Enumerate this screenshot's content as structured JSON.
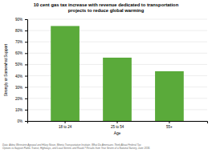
{
  "chart_data": {
    "type": "bar",
    "title": "10 cent gas tax increase with revenue dedicated to transportation\nprojects to reduce global warming",
    "categories": [
      "18 to 24",
      "25 to 54",
      "55+"
    ],
    "values": [
      0.84,
      0.56,
      0.44
    ],
    "color": "#5aaa3a",
    "xlabel": "Age",
    "ylabel": "Strongly or Somewhat Support",
    "ylim": [
      0,
      0.9
    ],
    "yticks": [
      {
        "value": 0.0,
        "label": "0%"
      },
      {
        "value": 0.1,
        "label": "10%"
      },
      {
        "value": 0.2,
        "label": "20%"
      },
      {
        "value": 0.3,
        "label": "30%"
      },
      {
        "value": 0.4,
        "label": "40%"
      },
      {
        "value": 0.5,
        "label": "50%"
      },
      {
        "value": 0.6,
        "label": "60%"
      },
      {
        "value": 0.7,
        "label": "70%"
      },
      {
        "value": 0.8,
        "label": "80%"
      },
      {
        "value": 0.9,
        "label": "90%"
      }
    ],
    "grid": true,
    "footnote": "Data: Adina Weinstein Agrawal and Hilary Nixon, Mineta Transportation Institute, What Do Americans Think About Federal Tax\nOptions to Support Public Transit, Highways, and Local Streets and Roads? Results from Year Seven of a National Survey, June 2016."
  }
}
